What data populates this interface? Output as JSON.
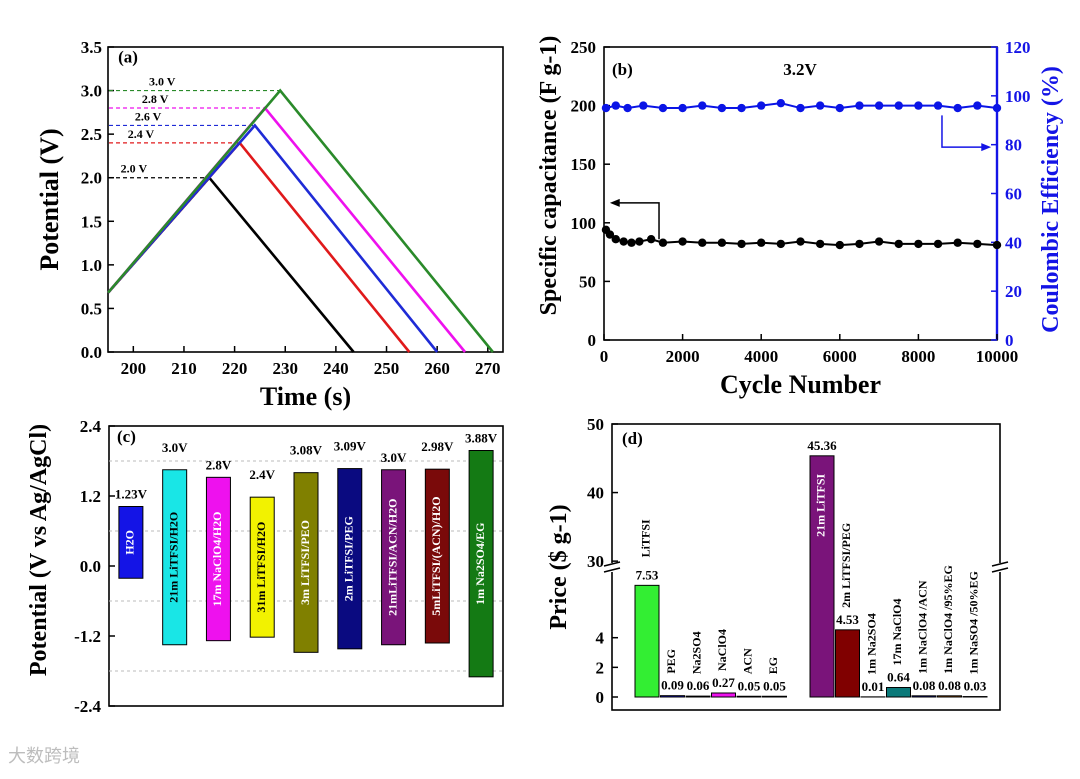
{
  "chart_data": [
    {
      "type": "line",
      "panel_label": "(a)",
      "xlabel": "Time (s)",
      "ylabel": "Potential (V)",
      "xlim": [
        195,
        273
      ],
      "ylim": [
        0,
        3.5
      ],
      "xticks": [
        "200",
        "210",
        "220",
        "230",
        "240",
        "250",
        "260",
        "270"
      ],
      "yticks": [
        "0.0",
        "0.5",
        "1.0",
        "1.5",
        "2.0",
        "2.5",
        "3.0",
        "3.5"
      ],
      "series": [
        {
          "name": "2.0 V",
          "color": "#000000",
          "points": [
            [
              195,
              0.68
            ],
            [
              215,
              2.0
            ],
            [
              243.5,
              0.0
            ]
          ]
        },
        {
          "name": "2.4 V",
          "color": "#e0191b",
          "points": [
            [
              195,
              0.68
            ],
            [
              221,
              2.4
            ],
            [
              254.5,
              0.0
            ]
          ]
        },
        {
          "name": "2.6 V",
          "color": "#1f2bd6",
          "points": [
            [
              195,
              0.68
            ],
            [
              224,
              2.6
            ],
            [
              260,
              0.0
            ]
          ]
        },
        {
          "name": "2.8 V",
          "color": "#ee11ee",
          "points": [
            [
              195,
              0.68
            ],
            [
              226,
              2.8
            ],
            [
              265.5,
              0.0
            ]
          ]
        },
        {
          "name": "3.0 V",
          "color": "#2a8a2a",
          "points": [
            [
              195,
              0.68
            ],
            [
              229,
              3.0
            ],
            [
              271,
              0.0
            ]
          ]
        }
      ]
    },
    {
      "type": "scatter",
      "panel_label": "(b)",
      "annotation": "3.2V",
      "xlabel": "Cycle Number",
      "ylabel": "Specific capacitance (F g-1)",
      "y2label": "Coulombic Efficiency (%)",
      "xlim": [
        0,
        10000
      ],
      "ylim": [
        0,
        250
      ],
      "y2lim": [
        0,
        120
      ],
      "xticks": [
        "0",
        "2000",
        "4000",
        "6000",
        "8000",
        "10000"
      ],
      "yticks": [
        "0",
        "50",
        "100",
        "150",
        "200",
        "250"
      ],
      "y2ticks": [
        "0",
        "20",
        "40",
        "60",
        "80",
        "100",
        "120"
      ],
      "series": [
        {
          "name": "capacitance",
          "axis": "left",
          "color": "#000000",
          "x": [
            50,
            150,
            300,
            500,
            700,
            900,
            1200,
            1500,
            2000,
            2500,
            3000,
            3500,
            4000,
            4500,
            5000,
            5500,
            6000,
            6500,
            7000,
            7500,
            8000,
            8500,
            9000,
            9500,
            10000
          ],
          "y": [
            94,
            90,
            86,
            84,
            83,
            84,
            86,
            83,
            84,
            83,
            83,
            82,
            83,
            82,
            84,
            82,
            81,
            82,
            84,
            82,
            82,
            82,
            83,
            82,
            81
          ]
        },
        {
          "name": "efficiency",
          "axis": "right",
          "color": "#0a14e6",
          "x": [
            50,
            300,
            600,
            1000,
            1500,
            2000,
            2500,
            3000,
            3500,
            4000,
            4500,
            5000,
            5500,
            6000,
            6500,
            7000,
            7500,
            8000,
            8500,
            9000,
            9500,
            10000
          ],
          "y": [
            95,
            96,
            95,
            96,
            95,
            95,
            96,
            95,
            95,
            96,
            97,
            95,
            96,
            95,
            96,
            96,
            96,
            96,
            96,
            95,
            96,
            95
          ]
        }
      ]
    },
    {
      "type": "bar",
      "panel_label": "(c)",
      "ylabel": "Potential (V vs Ag/AgCl)",
      "ylim": [
        -2.4,
        2.4
      ],
      "yticks": [
        "-2.4",
        "-1.2",
        "0.0",
        "1.2",
        "2.4"
      ],
      "categories": [
        "H2O",
        "21m LiTFSI/H2O",
        "17m NaClO4/H2O",
        "31m LiTFSI/H2O",
        "3m LiTFSI/PEO",
        "2m LiTFSI/PEG",
        "21mLiTFSI/ACN/H2O",
        "5mLiTFSI/(ACN)/H2O",
        "1m Na2SO4/EG"
      ],
      "windows": [
        "1.23V",
        "3.0V",
        "2.8V",
        "2.4V",
        "3.08V",
        "3.09V",
        "3.0V",
        "2.98V",
        "3.88V"
      ],
      "low": [
        -0.21,
        -1.35,
        -1.28,
        -1.22,
        -1.48,
        -1.42,
        -1.35,
        -1.32,
        -1.9
      ],
      "high": [
        1.02,
        1.65,
        1.52,
        1.18,
        1.6,
        1.67,
        1.65,
        1.66,
        1.98
      ],
      "colors": [
        "#1414e6",
        "#19e6e6",
        "#ee11ee",
        "#f2f200",
        "#808000",
        "#0a0a80",
        "#7a147a",
        "#7a0a0a",
        "#147a14"
      ]
    },
    {
      "type": "bar",
      "panel_label": "(d)",
      "ylabel": "Price ($ g-1)",
      "yticks": [
        "0",
        "2",
        "4",
        "30",
        "40",
        "50"
      ],
      "groups": [
        {
          "categories": [
            "LiTFSI",
            "PEG",
            "Na2SO4",
            "NaClO4",
            "ACN",
            "EG"
          ],
          "values": [
            7.53,
            0.09,
            0.06,
            0.27,
            0.05,
            0.05
          ],
          "value_labels": [
            "7.53",
            "0.09",
            "0.06",
            "0.27",
            "0.05",
            "0.05"
          ],
          "colors": [
            "#33ee33",
            "#1414e6",
            "#19e6e6",
            "#ee11ee",
            "#f2f200",
            "#808000"
          ]
        },
        {
          "categories": [
            "21m LiTFSI",
            "2m LiTFSI/PEG",
            "1m Na2SO4",
            "17m NaClO4",
            "1m NaClO4 /ACN",
            "1m NaClO4 /95%EG",
            "1m NaSO4 /50%EG"
          ],
          "values": [
            45.36,
            4.53,
            0.01,
            0.64,
            0.08,
            0.08,
            0.03
          ],
          "value_labels": [
            "45.36",
            "4.53",
            "0.01",
            "0.64",
            "0.08",
            "0.08",
            "0.03"
          ],
          "colors": [
            "#7a147a",
            "#800000",
            "#148a14",
            "#0a7a7a",
            "#1414e6",
            "#ff8000",
            "#9a20ff"
          ]
        }
      ]
    }
  ],
  "watermark": "大数跨境"
}
